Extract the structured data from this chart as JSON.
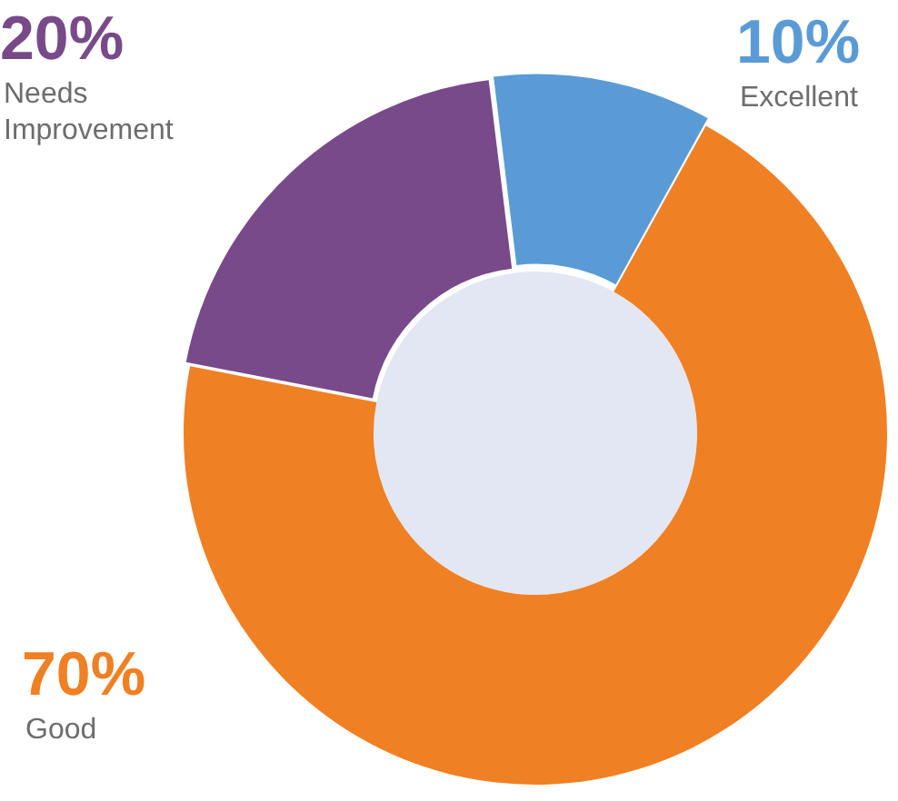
{
  "chart_data": {
    "type": "donut",
    "categories": [
      "Excellent",
      "Good",
      "Needs Improvement"
    ],
    "values": [
      10,
      70,
      20
    ],
    "value_labels": [
      "10%",
      "70%",
      "20%"
    ],
    "colors": [
      "#5b9bd5",
      "#f08024",
      "#784a8a"
    ],
    "legend": false
  }
}
